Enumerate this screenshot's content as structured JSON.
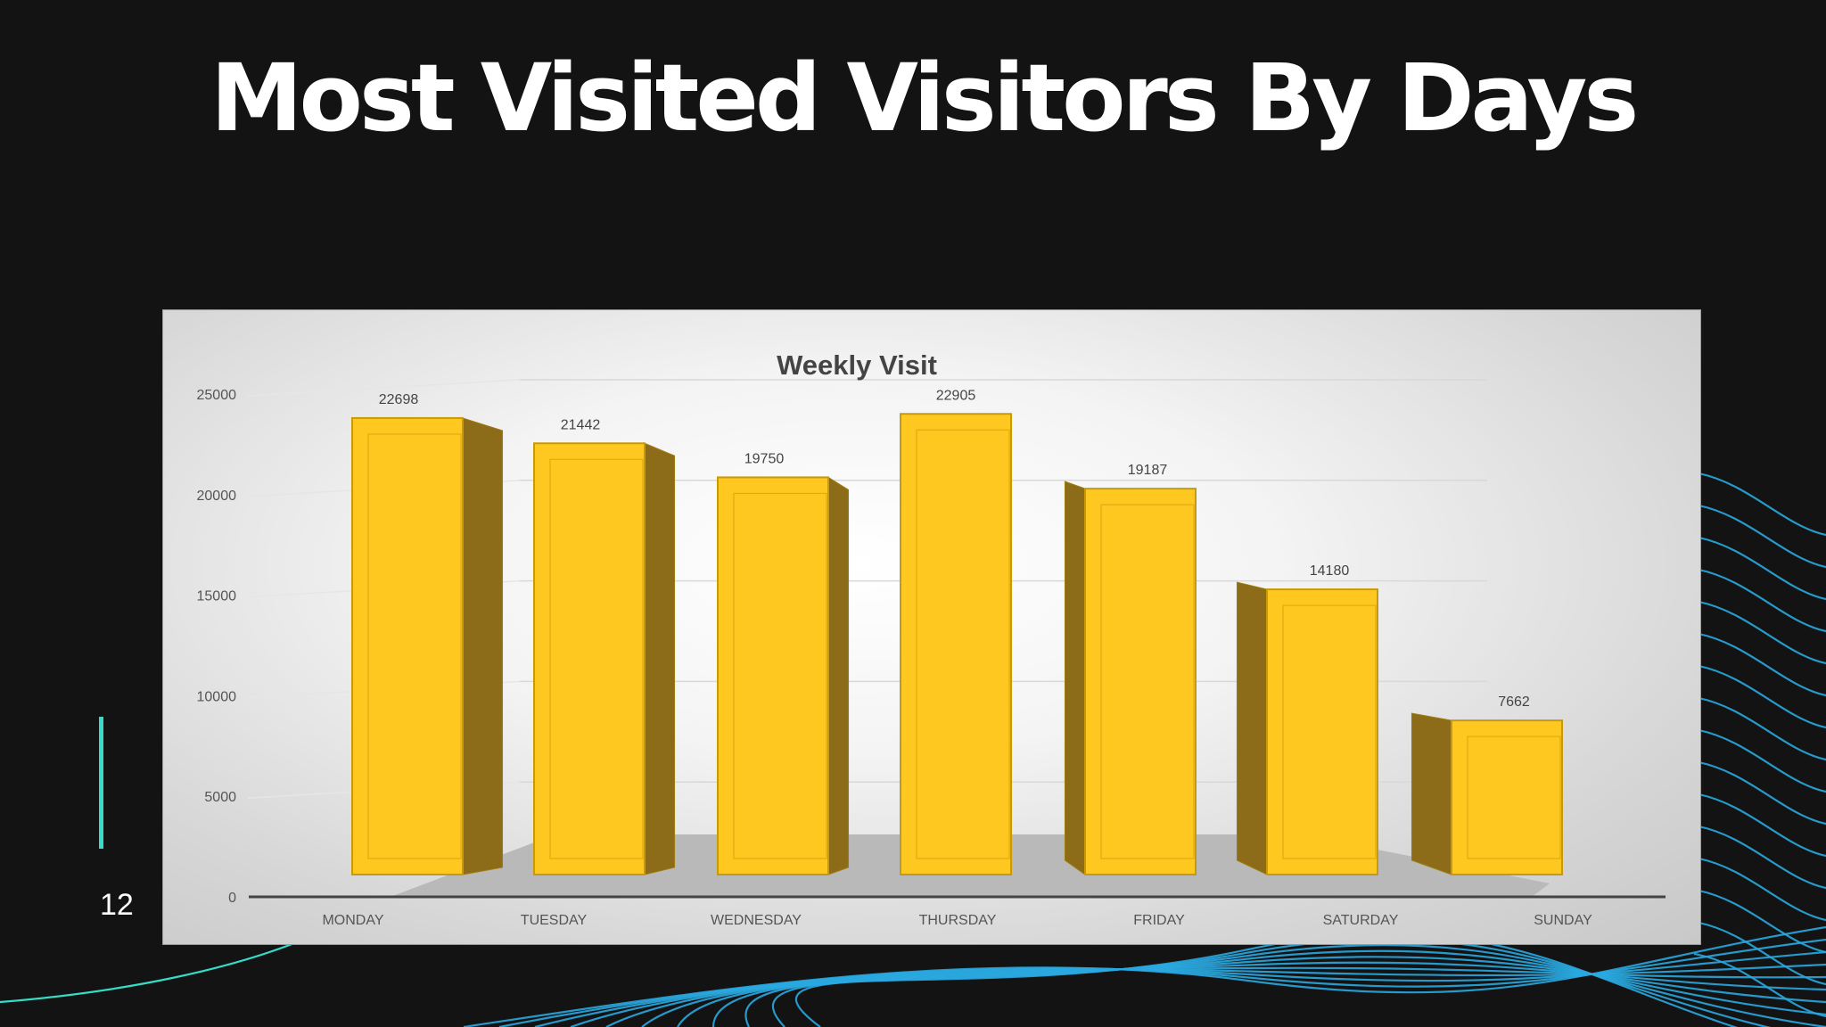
{
  "slide": {
    "title": "Most Visited Visitors By Days",
    "page_number": "12"
  },
  "colors": {
    "background": "#131313",
    "bar_front": "#ffc820",
    "bar_side": "#8c6c18",
    "accent": "#36dcc8",
    "wave": "#2aa8e0"
  },
  "chart_data": {
    "type": "bar",
    "title": "Weekly Visit",
    "categories": [
      "MONDAY",
      "TUESDAY",
      "WEDNESDAY",
      "THURSDAY",
      "FRIDAY",
      "SATURDAY",
      "SUNDAY"
    ],
    "values": [
      22698,
      21442,
      19750,
      22905,
      19187,
      14180,
      7662
    ],
    "yticks": [
      "25000",
      "20000",
      "15000",
      "10000",
      "5000",
      "0"
    ],
    "ylim": [
      0,
      25000
    ],
    "grid": true,
    "legend": "none",
    "style": "3d-columns"
  }
}
